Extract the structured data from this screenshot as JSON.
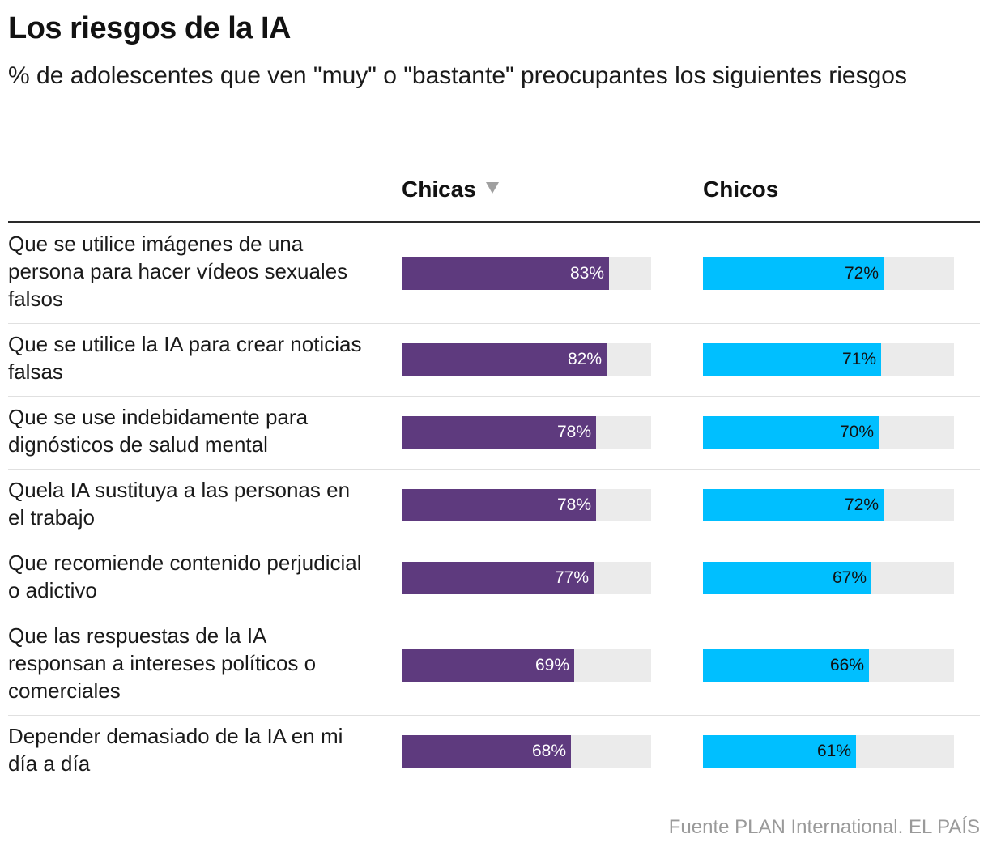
{
  "title": "Los riesgos de la IA",
  "subtitle": "% de adolescentes que ven \"muy\" o \"bastante\" preocupantes los siguientes riesgos",
  "source": "Fuente PLAN International. EL PAÍS",
  "colors": {
    "girls": "#5e3a7e",
    "boys": "#00bfff",
    "track": "#ebebeb"
  },
  "chart_data": {
    "type": "bar",
    "orientation": "horizontal",
    "title": "Los riesgos de la IA",
    "subtitle": "% de adolescentes que ven \"muy\" o \"bastante\" preocupantes los siguientes riesgos",
    "xlim": [
      0,
      100
    ],
    "sort_column": "Chicas",
    "sort_icon": "sort-descending-icon",
    "categories": [
      "Que se utilice imágenes de una persona para hacer vídeos sexuales falsos",
      "Que se utilice la IA para crear noticias falsas",
      "Que se use indebidamente para dignósticos de salud mental",
      "Quela IA sustituya a las personas en el trabajo",
      "Que recomiende contenido perjudicial o adictivo",
      "Que las respuestas de la IA responsan a intereses políticos o comerciales",
      "Depender demasiado de la IA en mi día a día"
    ],
    "series": [
      {
        "name": "Chicas",
        "values": [
          83,
          82,
          78,
          78,
          77,
          69,
          68
        ]
      },
      {
        "name": "Chicos",
        "values": [
          72,
          71,
          70,
          72,
          67,
          66,
          61
        ]
      }
    ]
  }
}
